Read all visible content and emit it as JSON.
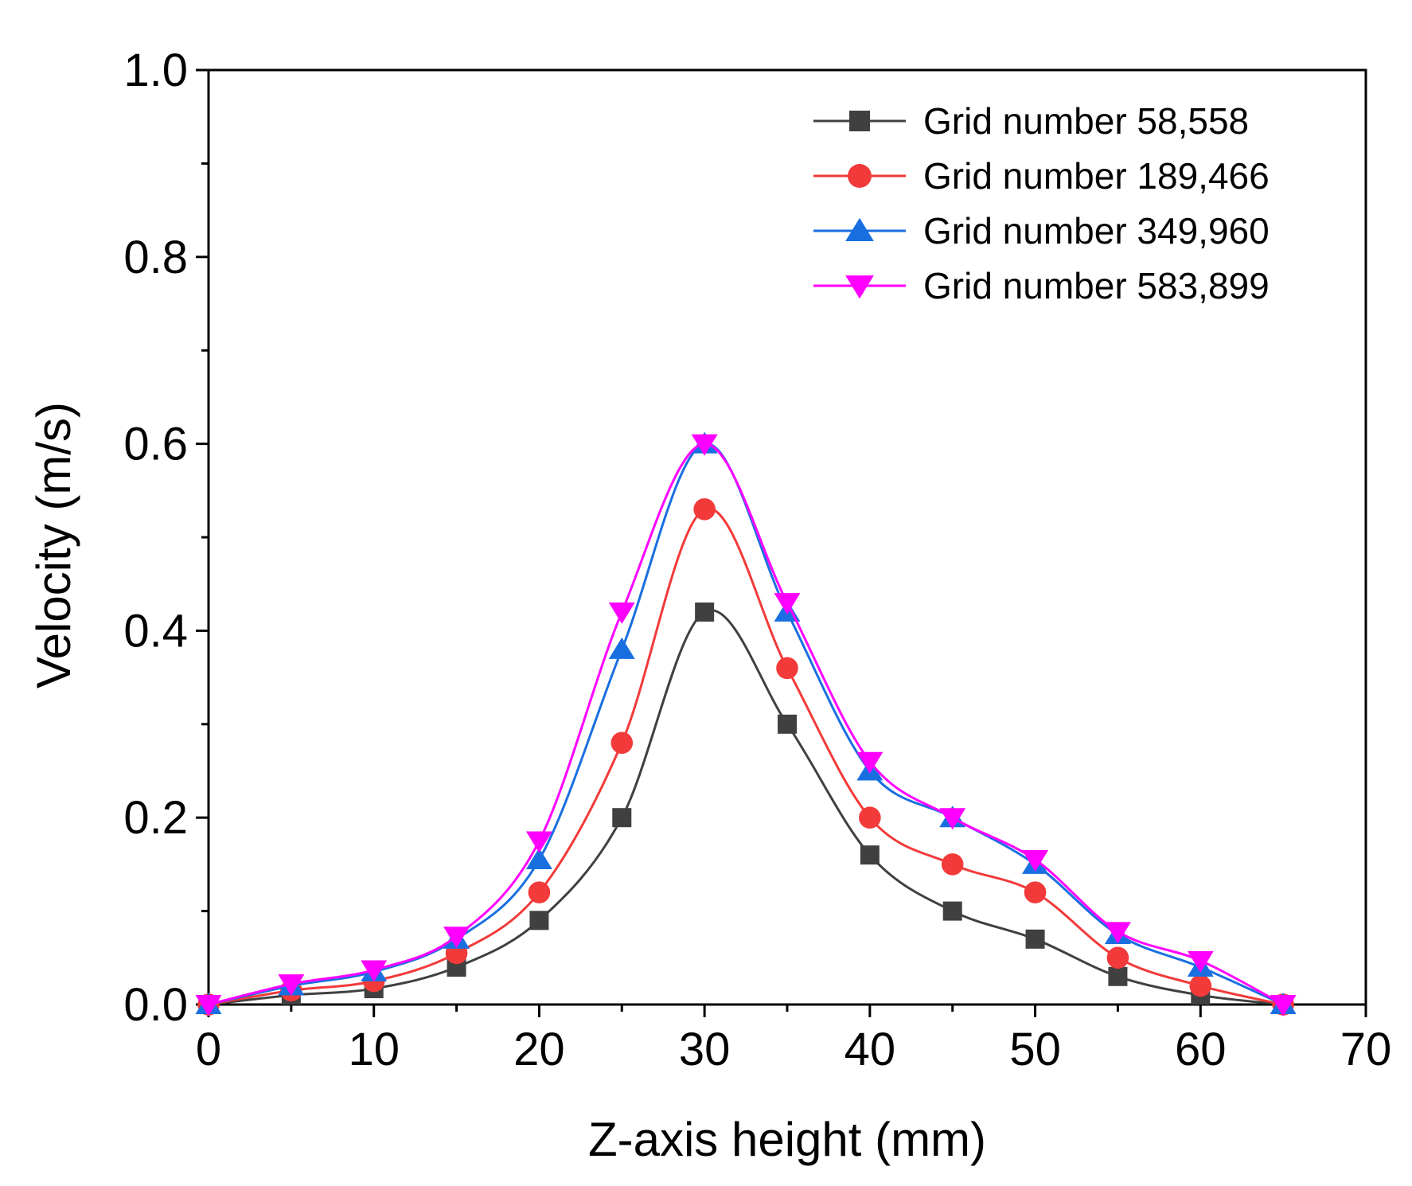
{
  "chart_data": {
    "type": "line",
    "title": "",
    "xlabel": "Z-axis height (mm)",
    "ylabel": "Velocity (m/s)",
    "xlim": [
      0,
      70
    ],
    "ylim": [
      0,
      1.0
    ],
    "x_ticks": [
      0,
      10,
      20,
      30,
      40,
      50,
      60,
      70
    ],
    "y_ticks": [
      0.0,
      0.2,
      0.4,
      0.6,
      0.8,
      1.0
    ],
    "x_tick_labels": [
      "0",
      "10",
      "20",
      "30",
      "40",
      "50",
      "60",
      "70"
    ],
    "y_tick_labels": [
      "0.0",
      "0.2",
      "0.4",
      "0.6",
      "0.8",
      "1.0"
    ],
    "grid": false,
    "legend_position": "top-right",
    "x": [
      0,
      5,
      10,
      15,
      20,
      25,
      30,
      35,
      40,
      45,
      50,
      55,
      60,
      65
    ],
    "series": [
      {
        "name": "Grid number 58,558",
        "color": "#404040",
        "marker": "square",
        "values": [
          0.0,
          0.01,
          0.017,
          0.04,
          0.09,
          0.2,
          0.42,
          0.3,
          0.16,
          0.1,
          0.07,
          0.03,
          0.01,
          0.0
        ]
      },
      {
        "name": "Grid number 189,466",
        "color": "#f23a3a",
        "marker": "circle",
        "values": [
          0.0,
          0.015,
          0.025,
          0.055,
          0.12,
          0.28,
          0.53,
          0.36,
          0.2,
          0.15,
          0.12,
          0.05,
          0.02,
          0.0
        ]
      },
      {
        "name": "Grid number 349,960",
        "color": "#1a6fe0",
        "marker": "triangle-up",
        "values": [
          0.0,
          0.02,
          0.035,
          0.07,
          0.155,
          0.38,
          0.6,
          0.42,
          0.25,
          0.2,
          0.15,
          0.075,
          0.04,
          0.0
        ]
      },
      {
        "name": "Grid number 583,899",
        "color": "#ff00ff",
        "marker": "triangle-down",
        "values": [
          0.0,
          0.022,
          0.037,
          0.073,
          0.175,
          0.42,
          0.6,
          0.43,
          0.26,
          0.2,
          0.155,
          0.078,
          0.047,
          0.0
        ]
      }
    ]
  }
}
